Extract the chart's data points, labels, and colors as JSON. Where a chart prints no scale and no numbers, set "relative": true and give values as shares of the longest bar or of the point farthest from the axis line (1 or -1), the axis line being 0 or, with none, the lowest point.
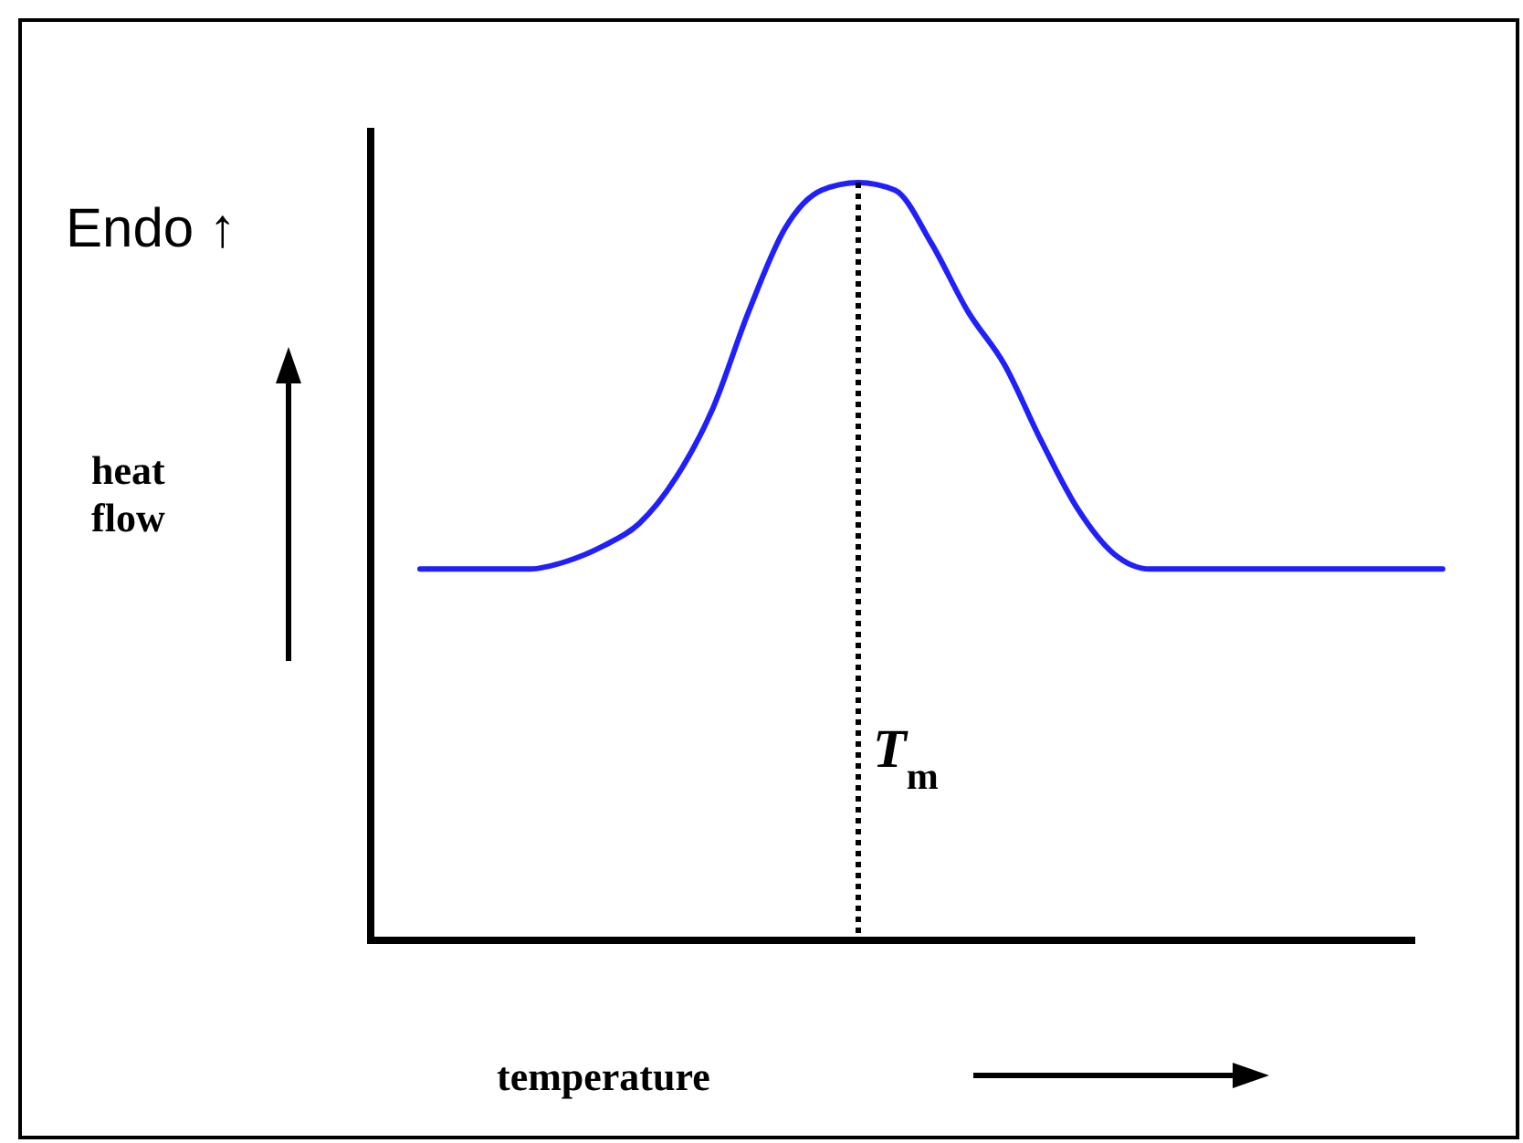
{
  "chart_data": {
    "type": "line",
    "relative": true,
    "xlabel": "temperature",
    "annotations": [
      "Endo ↑",
      "heat flow",
      "T$_{m}$"
    ],
    "categories": [
      null,
      null,
      null,
      null,
      null,
      null,
      null,
      null,
      null,
      null,
      null,
      null,
      null,
      null,
      null,
      null,
      null,
      null,
      null,
      null,
      null,
      null,
      null,
      null,
      null,
      null,
      null,
      null,
      null
    ],
    "series": [
      {
        "color": "#1f1fff",
        "values": [
          0.49,
          0.49,
          0.49,
          0.49,
          0.5,
          0.52,
          0.55,
          0.61,
          0.7,
          0.83,
          0.94,
          0.99,
          1,
          0.99,
          0.92,
          0.83,
          0.76,
          0.66,
          0.57,
          0.51,
          0.49,
          0.49,
          0.49,
          0.49,
          0.49,
          0.49,
          0.49,
          0.49,
          0.49
        ]
      }
    ],
    "grid": false,
    "marker": "none",
    "line_style": "solid"
  }
}
